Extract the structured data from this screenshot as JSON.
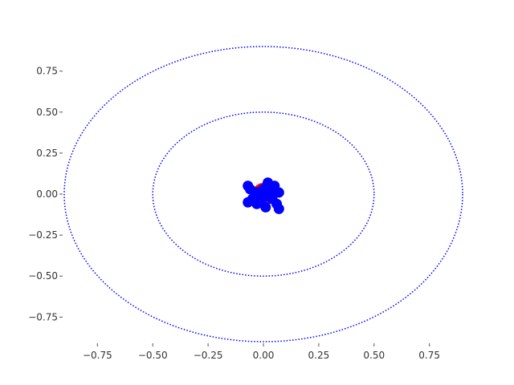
{
  "chart_data": {
    "type": "scatter",
    "title": "",
    "xlabel": "",
    "ylabel": "",
    "xlim": [
      -0.9,
      0.9
    ],
    "ylim": [
      -0.9,
      0.9
    ],
    "grid": false,
    "frame": false,
    "x_ticks": [
      -0.75,
      -0.5,
      -0.25,
      0.0,
      0.25,
      0.5,
      0.75
    ],
    "x_tick_labels": [
      "−0.75",
      "−0.50",
      "−0.25",
      "0.00",
      "0.25",
      "0.50",
      "0.75"
    ],
    "y_ticks": [
      0.75,
      0.5,
      0.25,
      0.0,
      -0.25,
      -0.5,
      -0.75
    ],
    "y_tick_labels": [
      "0.75",
      "0.50",
      "0.25",
      "0.00",
      "−0.25",
      "−0.50",
      "−0.75"
    ],
    "circles": [
      {
        "r": 0.5,
        "color": "#0000ff",
        "style": "dotted"
      },
      {
        "r": 0.9,
        "color": "#0000ff",
        "style": "dotted"
      }
    ],
    "series": [
      {
        "color": "#ff0000",
        "points": [
          [
            0.0,
            0.0
          ]
        ]
      },
      {
        "color": "#0000ff",
        "points": [
          [
            -0.07,
            0.05
          ],
          [
            -0.06,
            0.03
          ],
          [
            0.02,
            0.07
          ],
          [
            0.05,
            0.05
          ],
          [
            0.07,
            0.01
          ],
          [
            0.03,
            0.02
          ],
          [
            -0.03,
            0.01
          ],
          [
            0.0,
            -0.02
          ],
          [
            -0.05,
            -0.03
          ],
          [
            -0.07,
            -0.05
          ],
          [
            -0.03,
            -0.06
          ],
          [
            0.01,
            -0.08
          ],
          [
            0.06,
            -0.06
          ],
          [
            0.07,
            -0.09
          ],
          [
            0.04,
            -0.03
          ],
          [
            0.0,
            0.03
          ],
          [
            -0.01,
            -0.04
          ]
        ]
      }
    ]
  }
}
